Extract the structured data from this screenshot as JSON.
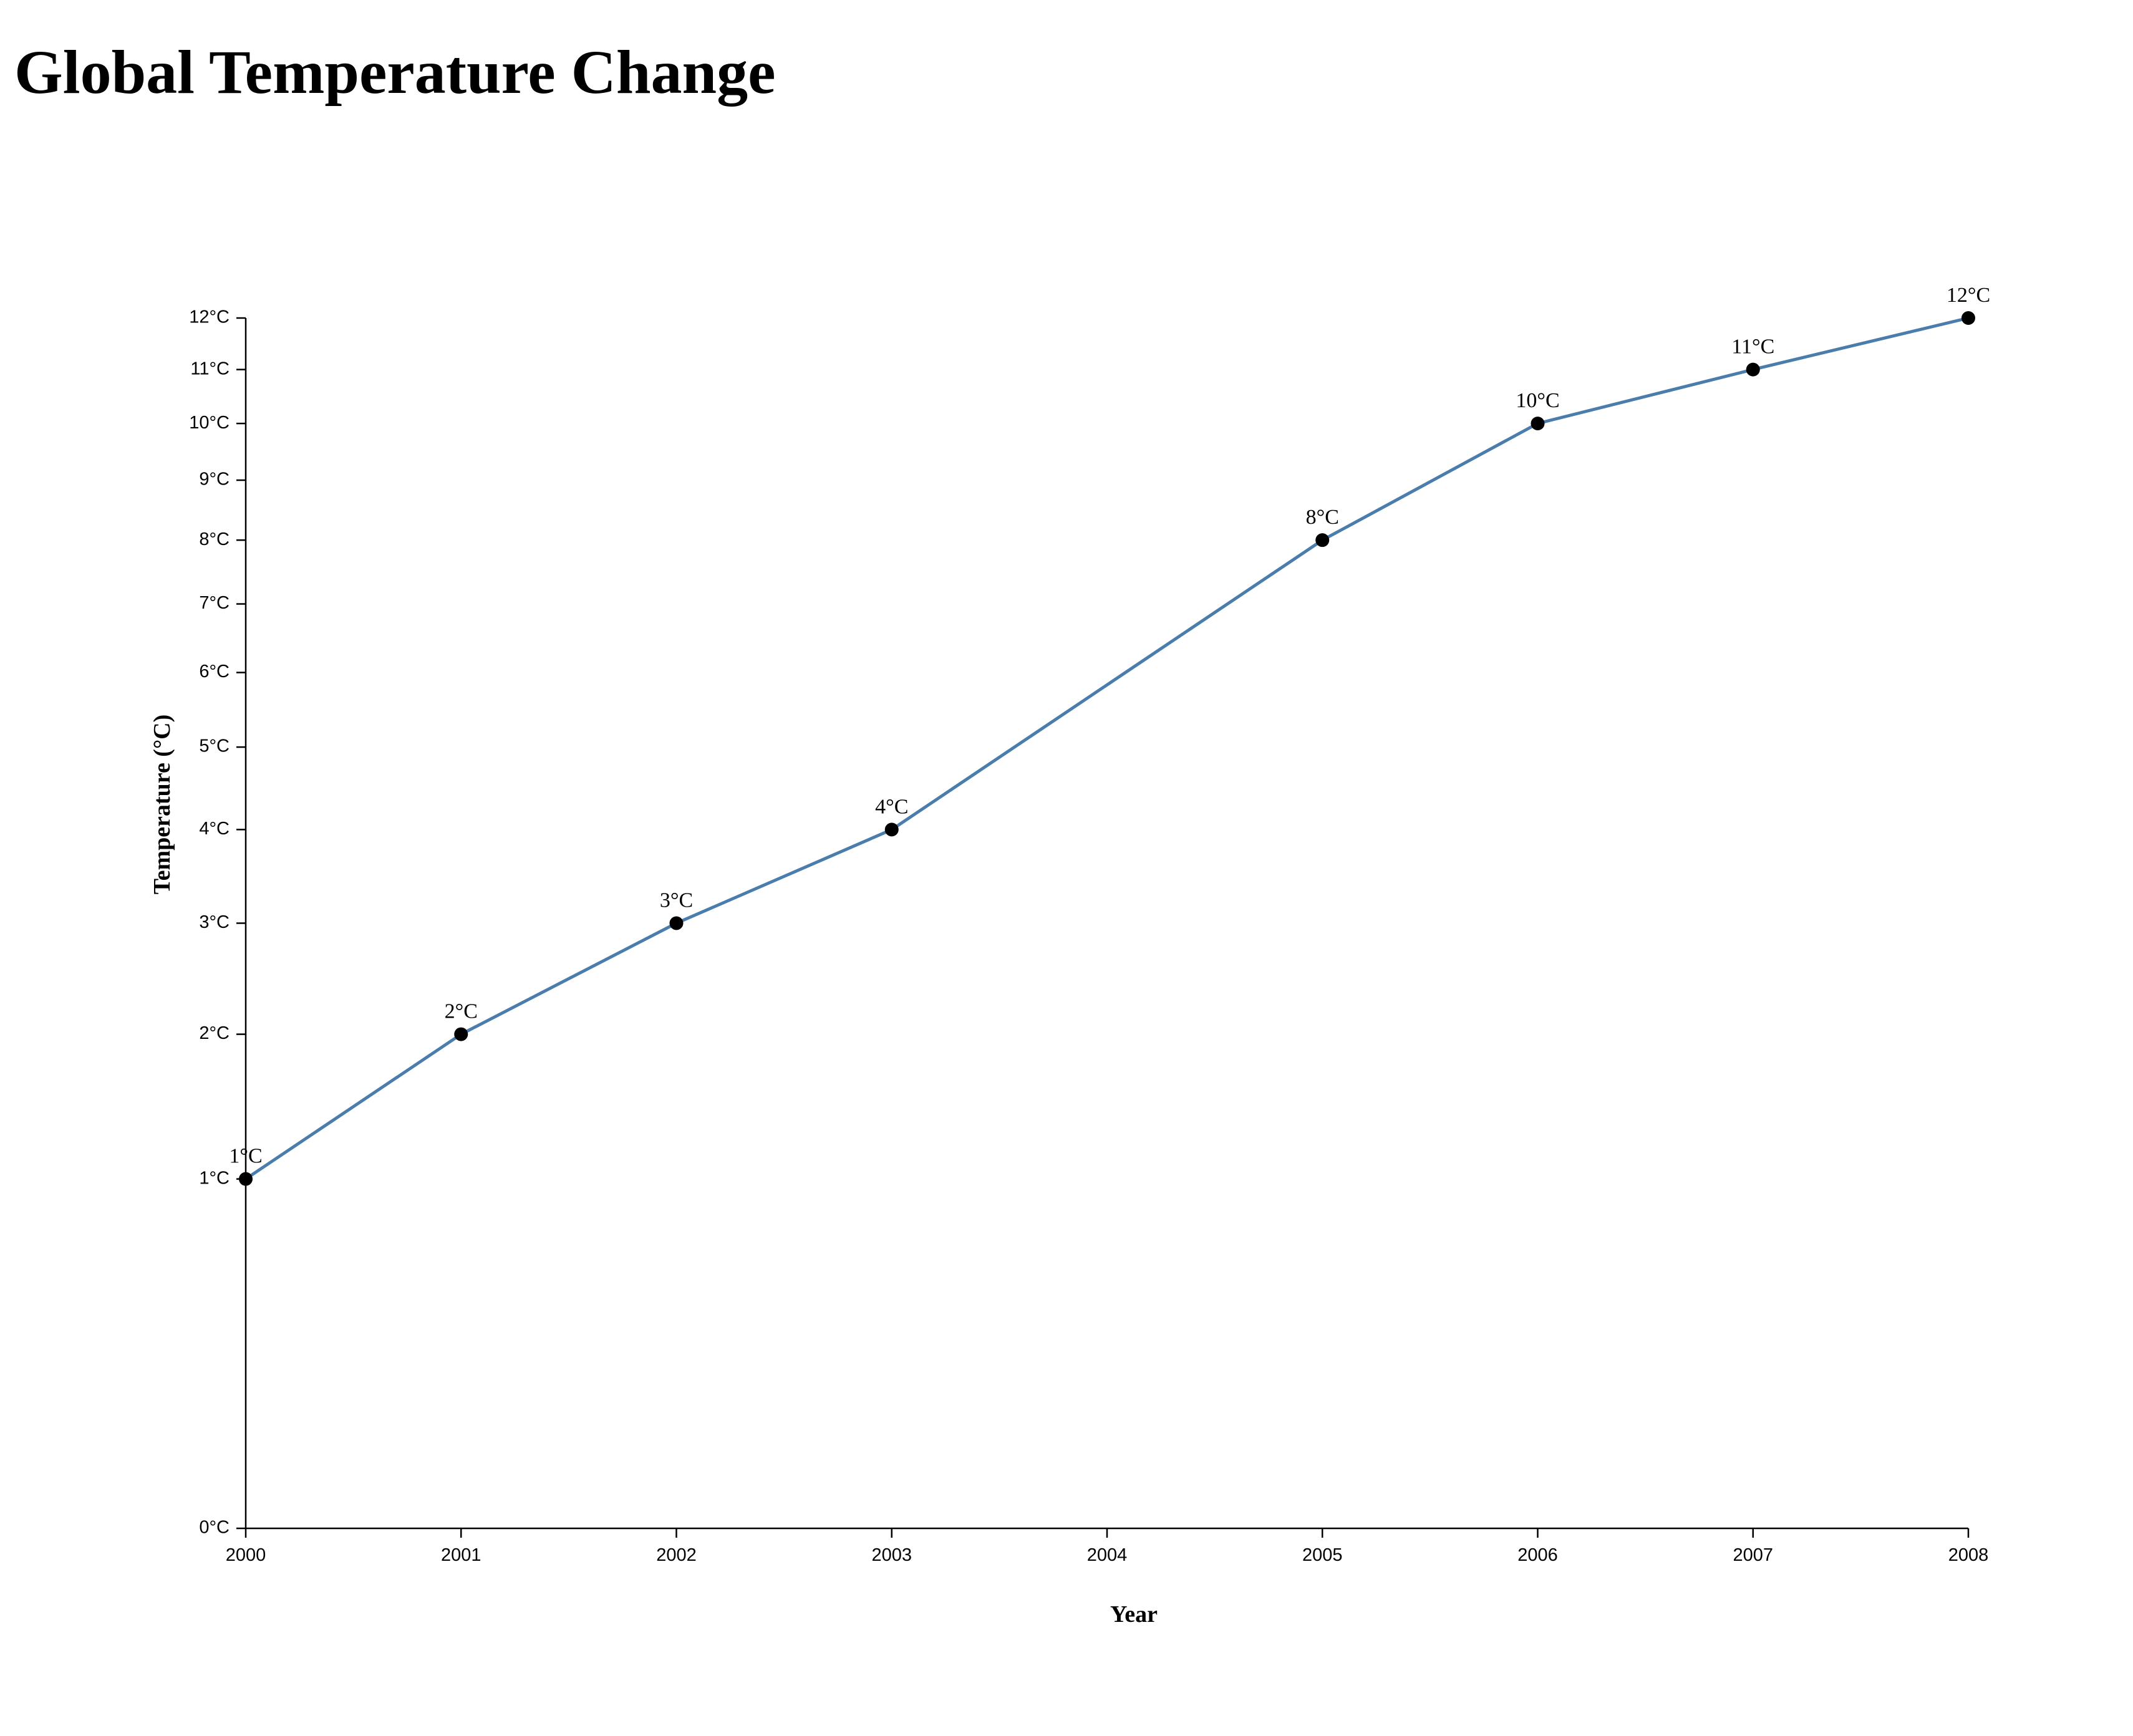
{
  "page": {
    "title": "Global Temperature Change"
  },
  "chart_data": {
    "type": "line",
    "title": "Global Temperature Change",
    "xlabel": "Year",
    "ylabel": "Temperature (°C)",
    "x": [
      2000,
      2001,
      2002,
      2003,
      2005,
      2006,
      2007,
      2008
    ],
    "x_ticks": [
      "2000",
      "2001",
      "2002",
      "2003",
      "2004",
      "2005",
      "2006",
      "2007",
      "2008"
    ],
    "xlim": [
      2000,
      2008
    ],
    "y_scale": "sqrt",
    "ylim": [
      0,
      12
    ],
    "y_ticks": [
      "0°C",
      "1°C",
      "2°C",
      "3°C",
      "4°C",
      "5°C",
      "6°C",
      "7°C",
      "8°C",
      "9°C",
      "10°C",
      "11°C",
      "12°C"
    ],
    "series": [
      {
        "values": [
          1,
          2,
          3,
          4,
          8,
          10,
          11,
          12
        ],
        "labels": [
          "1°C",
          "2°C",
          "3°C",
          "4°C",
          "8°C",
          "10°C",
          "11°C",
          "12°C"
        ]
      }
    ],
    "grid": false,
    "legend": "none",
    "colors": {
      "line": "#4a7dab",
      "point": "#000000"
    }
  }
}
